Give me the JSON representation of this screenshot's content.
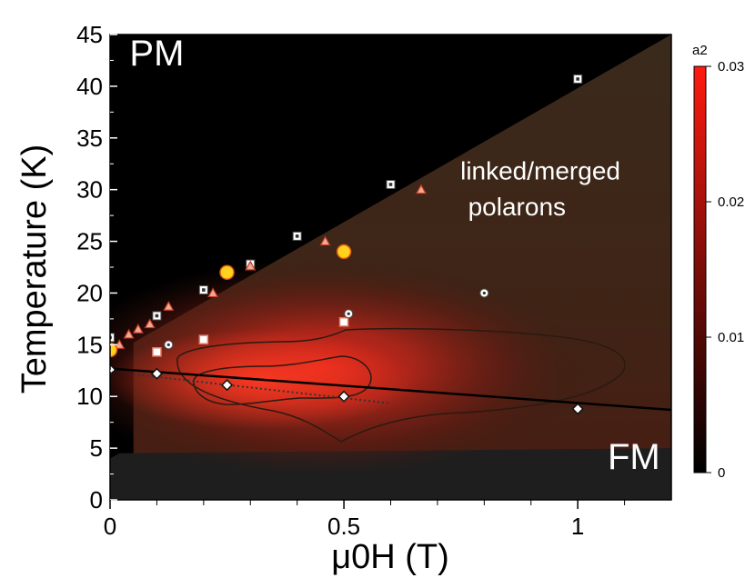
{
  "chart_data": {
    "type": "heatmap",
    "title": "",
    "xlabel": "μ0H (T)",
    "ylabel": "Temperature (K)",
    "xlim": [
      0,
      1.2
    ],
    "ylim": [
      0,
      45
    ],
    "x_ticks": [
      "0",
      "0.5",
      "1"
    ],
    "x_tick_values": [
      0,
      0.5,
      1
    ],
    "y_ticks": [
      "0",
      "5",
      "10",
      "15",
      "20",
      "25",
      "30",
      "35",
      "40",
      "45"
    ],
    "y_tick_values": [
      0,
      5,
      10,
      15,
      20,
      25,
      30,
      35,
      40,
      45
    ],
    "colorbar": {
      "label": "a2",
      "range": [
        0,
        0.03
      ],
      "ticks": [
        "0",
        "0.01",
        "0.02",
        "0.03"
      ],
      "tick_values": [
        0,
        0.01,
        0.02,
        0.03
      ],
      "colors": [
        "#000000",
        "#ff1a10"
      ]
    },
    "regions": [
      {
        "label": "PM",
        "x": 0.1,
        "y": 42
      },
      {
        "label": "linked/merged",
        "x": 0.92,
        "y": 31
      },
      {
        "label": "polarons",
        "x": 0.87,
        "y": 27.5
      },
      {
        "label": "FM",
        "x": 1.12,
        "y": 3
      }
    ],
    "boundary_line": {
      "x": [
        0.05,
        1.2
      ],
      "y": [
        15.2,
        45
      ]
    },
    "fm_line": {
      "x": [
        0,
        1.2
      ],
      "y": [
        12.7,
        8.7
      ]
    },
    "hotspot": {
      "x": 0.28,
      "y": 11.2,
      "value": 0.03
    },
    "series": [
      {
        "marker": "square-white",
        "points": [
          [
            0,
            15.7
          ],
          [
            0.1,
            17.8
          ],
          [
            0.2,
            20.3
          ],
          [
            0.3,
            22.8
          ],
          [
            0.4,
            25.5
          ],
          [
            0.6,
            30.5
          ],
          [
            1.0,
            40.7
          ]
        ]
      },
      {
        "marker": "triangle",
        "points": [
          [
            0.02,
            15.0
          ],
          [
            0.04,
            16.0
          ],
          [
            0.06,
            16.5
          ],
          [
            0.085,
            17.0
          ],
          [
            0.125,
            18.7
          ],
          [
            0.22,
            20.0
          ],
          [
            0.3,
            22.6
          ],
          [
            0.46,
            25.0
          ],
          [
            0.665,
            30.0
          ]
        ]
      },
      {
        "marker": "square-orange",
        "points": [
          [
            0.1,
            14.3
          ],
          [
            0.2,
            15.5
          ],
          [
            0.5,
            17.2
          ]
        ]
      },
      {
        "marker": "circle-dot",
        "points": [
          [
            0.125,
            15.0
          ],
          [
            0.51,
            18.0
          ],
          [
            0.8,
            20.0
          ]
        ]
      },
      {
        "marker": "circle-yellow",
        "points": [
          [
            0,
            14.5
          ],
          [
            0.25,
            22.0
          ],
          [
            0.5,
            24.0
          ]
        ]
      },
      {
        "marker": "diamond",
        "points": [
          [
            0,
            12.6
          ],
          [
            0.1,
            12.2
          ],
          [
            0.25,
            11.1
          ],
          [
            0.5,
            10.0
          ],
          [
            1.0,
            8.8
          ]
        ]
      }
    ]
  },
  "colors": {
    "pm_region": "#000000",
    "polaron_region": "#36281b",
    "fm_region": "#1e1e1e",
    "triangle_fill": "#f3a98c",
    "triangle_stroke": "#c0392b",
    "yellow_fill": "#ffd21e",
    "orange_stroke": "#e8836a",
    "fm_line": "#000000"
  }
}
